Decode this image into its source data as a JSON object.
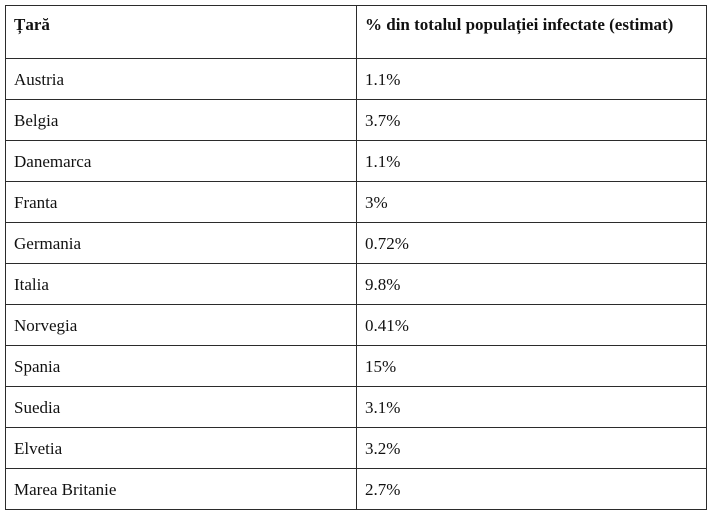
{
  "table": {
    "headers": [
      "Țară",
      "% din totalul populației infectate (estimat)"
    ],
    "rows": [
      [
        "Austria",
        "1.1%"
      ],
      [
        "Belgia",
        "3.7%"
      ],
      [
        "Danemarca",
        "1.1%"
      ],
      [
        "Franta",
        "3%"
      ],
      [
        "Germania",
        "0.72%"
      ],
      [
        "Italia",
        "9.8%"
      ],
      [
        "Norvegia",
        "0.41%"
      ],
      [
        "Spania",
        "15%"
      ],
      [
        "Suedia",
        "3.1%"
      ],
      [
        "Elvetia",
        "3.2%"
      ],
      [
        "Marea Britanie",
        "2.7%"
      ]
    ]
  }
}
